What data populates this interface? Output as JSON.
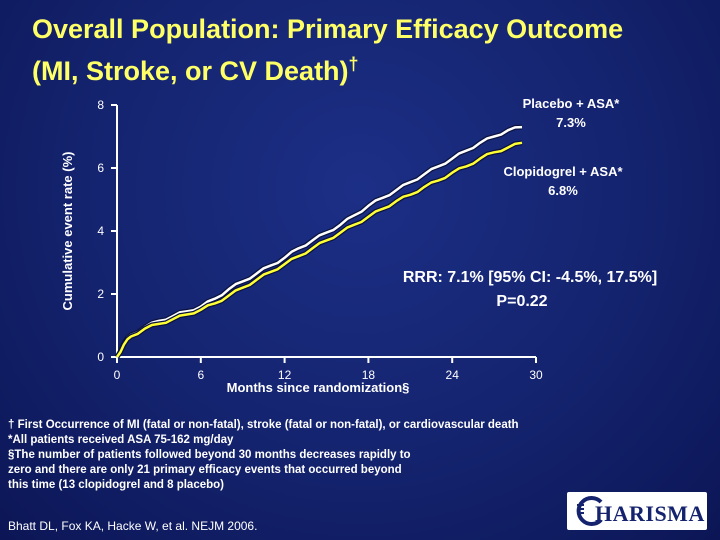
{
  "slide": {
    "title_line1": "Overall Population: Primary Efficacy Outcome",
    "title_line2": "(MI, Stroke, or CV Death)",
    "title_mark": "†"
  },
  "chart_data": {
    "type": "line",
    "title": "Overall Population: Primary Efficacy Outcome (MI, Stroke, or CV Death)†",
    "xlabel": "Months since randomization§",
    "ylabel": "Cumulative event rate (%)",
    "xlim": [
      0,
      30
    ],
    "ylim": [
      0,
      8
    ],
    "x_ticks": [
      "0",
      "6",
      "12",
      "18",
      "24",
      "30"
    ],
    "y_ticks": [
      "0",
      "2",
      "4",
      "6",
      "8"
    ],
    "grid": false,
    "series": [
      {
        "name": "Placebo + ASA*",
        "final_label": "7.3%",
        "color": "#ffffff",
        "x": [
          0,
          0.5,
          1,
          2,
          3,
          4,
          5,
          6,
          7,
          8,
          9,
          10,
          11,
          12,
          13,
          14,
          15,
          16,
          17,
          18,
          19,
          20,
          21,
          22,
          23,
          24,
          25,
          26,
          27,
          28,
          29
        ],
        "y": [
          0,
          0.45,
          0.7,
          0.95,
          1.15,
          1.3,
          1.45,
          1.6,
          1.85,
          2.15,
          2.4,
          2.65,
          2.9,
          3.15,
          3.45,
          3.7,
          3.95,
          4.2,
          4.5,
          4.8,
          5.05,
          5.3,
          5.55,
          5.8,
          6.05,
          6.3,
          6.55,
          6.8,
          7.0,
          7.2,
          7.3
        ]
      },
      {
        "name": "Clopidogrel + ASA*",
        "final_label": "6.8%",
        "color": "#ffff33",
        "x": [
          0,
          0.5,
          1,
          2,
          3,
          4,
          5,
          6,
          7,
          8,
          9,
          10,
          11,
          12,
          13,
          14,
          15,
          16,
          17,
          18,
          19,
          20,
          21,
          22,
          23,
          24,
          25,
          26,
          27,
          28,
          29
        ],
        "y": [
          0,
          0.4,
          0.65,
          0.9,
          1.05,
          1.2,
          1.35,
          1.5,
          1.7,
          1.95,
          2.2,
          2.45,
          2.7,
          2.95,
          3.2,
          3.45,
          3.7,
          3.95,
          4.2,
          4.45,
          4.7,
          4.95,
          5.15,
          5.4,
          5.6,
          5.85,
          6.05,
          6.3,
          6.5,
          6.65,
          6.8
        ]
      }
    ],
    "annotations": [
      "RRR: 7.1% [95% CI: -4.5%, 17.5%]",
      "P=0.22"
    ]
  },
  "footnotes": {
    "dagger": "† First Occurrence of MI (fatal or non-fatal), stroke (fatal or non-fatal), or cardiovascular death",
    "asa": "*All patients received ASA 75-162 mg/day",
    "section_1": "§The number of patients followed beyond 30 months decreases rapidly to",
    "section_2": "zero and there are only 21 primary efficacy events that occurred beyond",
    "section_3": "this time (13 clopidogrel and 8 placebo)"
  },
  "citation": "Bhatt DL, Fox KA, Hacke W, et al. NEJM 2006.",
  "logo": {
    "text": "HARISMA",
    "icon": "charisma-logo-icon"
  }
}
